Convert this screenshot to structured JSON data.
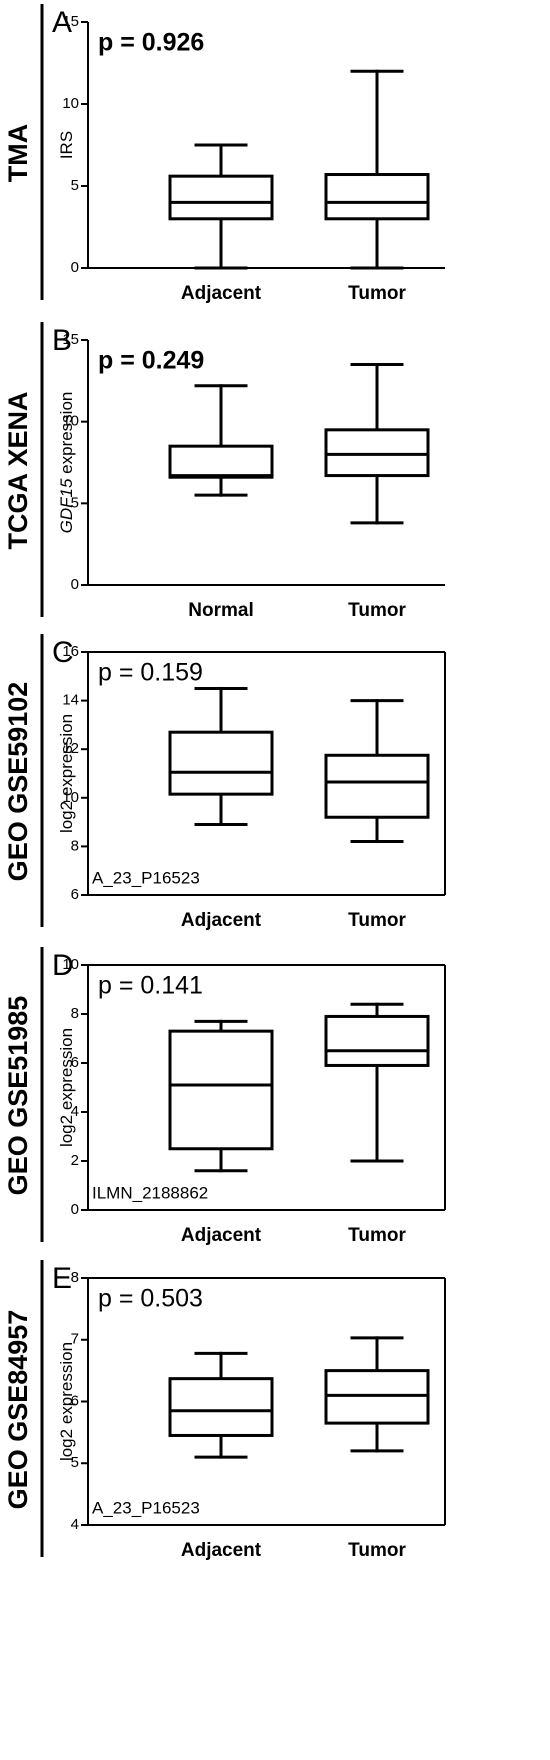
{
  "chart_data": [
    {
      "type": "box",
      "panel": "A",
      "row_label": "TMA",
      "ylabel": "IRS",
      "p_text": "p = 0.926",
      "p_bold": true,
      "frame": false,
      "categories": [
        "Adjacent",
        "Tumor"
      ],
      "boxes": [
        {
          "min": 0,
          "q1": 3,
          "median": 4,
          "q3": 5.6,
          "max": 7.5
        },
        {
          "min": 0,
          "q1": 3,
          "median": 4,
          "q3": 5.7,
          "max": 12
        }
      ],
      "ylim": [
        0,
        15
      ],
      "yticks": [
        0,
        5,
        10,
        15
      ]
    },
    {
      "type": "box",
      "panel": "B",
      "row_label": "TCGA XENA",
      "ylabel_gene": "GDF15",
      "ylabel": "expression",
      "p_text": "p = 0.249",
      "p_bold": true,
      "frame": false,
      "categories": [
        "Normal",
        "Tumor"
      ],
      "boxes": [
        {
          "min": 5.5,
          "q1": 6.6,
          "median": 6.7,
          "q3": 8.5,
          "max": 12.2
        },
        {
          "min": 3.8,
          "q1": 6.7,
          "median": 8,
          "q3": 9.5,
          "max": 13.5
        }
      ],
      "ylim": [
        0,
        15
      ],
      "yticks": [
        0,
        5,
        10,
        15
      ]
    },
    {
      "type": "box",
      "panel": "C",
      "row_label": "GEO GSE59102",
      "ylabel": "log2 expression",
      "p_text": "p = 0.159",
      "p_bold": false,
      "frame": true,
      "annotation": "A_23_P16523",
      "categories": [
        "Adjacent",
        "Tumor"
      ],
      "boxes": [
        {
          "min": 8.9,
          "q1": 10.15,
          "median": 11.05,
          "q3": 12.7,
          "max": 14.5
        },
        {
          "min": 8.2,
          "q1": 9.2,
          "median": 10.65,
          "q3": 11.75,
          "max": 14
        }
      ],
      "ylim": [
        6,
        16
      ],
      "yticks": [
        6,
        8,
        10,
        12,
        14,
        16
      ]
    },
    {
      "type": "box",
      "panel": "D",
      "row_label": "GEO GSE51985",
      "ylabel": "log2 expression",
      "p_text": "p = 0.141",
      "p_bold": false,
      "frame": true,
      "annotation": "ILMN_2188862",
      "categories": [
        "Adjacent",
        "Tumor"
      ],
      "boxes": [
        {
          "min": 1.6,
          "q1": 2.5,
          "median": 5.1,
          "q3": 7.3,
          "max": 7.7
        },
        {
          "min": 2,
          "q1": 5.9,
          "median": 6.5,
          "q3": 7.9,
          "max": 8.4
        }
      ],
      "ylim": [
        0,
        10
      ],
      "yticks": [
        0,
        2,
        4,
        6,
        8,
        10
      ]
    },
    {
      "type": "box",
      "panel": "E",
      "row_label": "GEO GSE84957",
      "ylabel": "log2 expression",
      "p_text": "p = 0.503",
      "p_bold": false,
      "frame": true,
      "annotation": "A_23_P16523",
      "categories": [
        "Adjacent",
        "Tumor"
      ],
      "boxes": [
        {
          "min": 5.1,
          "q1": 5.45,
          "median": 5.85,
          "q3": 6.37,
          "max": 6.78
        },
        {
          "min": 5.2,
          "q1": 5.65,
          "median": 6.1,
          "q3": 6.5,
          "max": 7.03
        }
      ],
      "ylim": [
        4,
        8
      ],
      "yticks": [
        4,
        5,
        6,
        7,
        8
      ]
    }
  ]
}
